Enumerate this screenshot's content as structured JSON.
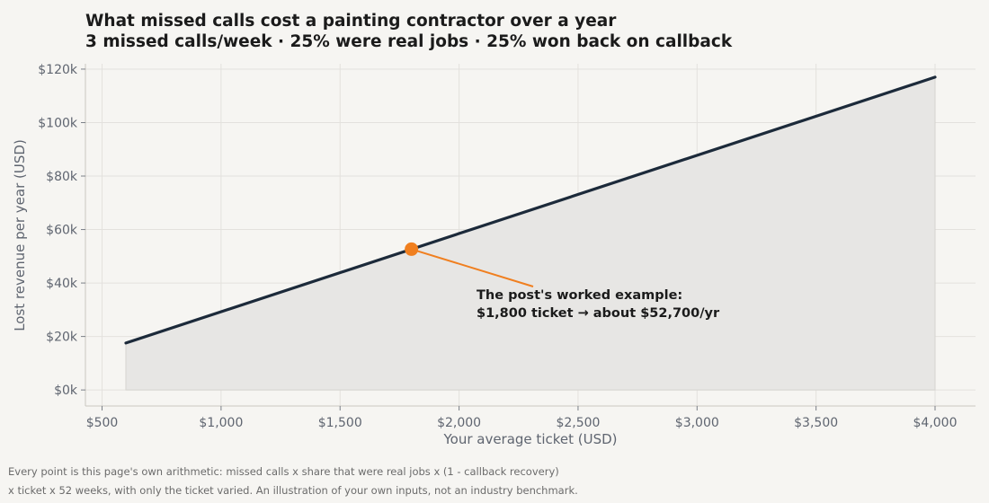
{
  "header": {
    "title": "What missed calls cost a painting contractor over a year",
    "subtitle": "3 missed calls/week · 25% were real jobs · 25% won back on callback"
  },
  "footnote": {
    "line1": "Every point is this page's own arithmetic: missed calls x share that were real jobs x (1 - callback recovery)",
    "line2": "x ticket x 52 weeks, with only the ticket varied. An illustration of your own inputs, not an industry benchmark."
  },
  "annotation": {
    "line1": "The post's worked example:",
    "line2": "$1,800 ticket → about $52,700/yr"
  },
  "colors": {
    "line": "#1c2a3a",
    "fill": "#e7e6e4",
    "highlight": "#f07f1f",
    "grid": "#e3e1dd",
    "axis_text": "#5f6570"
  },
  "chart_data": {
    "type": "area",
    "title": "What missed calls cost a painting contractor over a year",
    "subtitle": "3 missed calls/week · 25% were real jobs · 25% won back on callback",
    "xlabel": "Your average ticket (USD)",
    "ylabel": "Lost revenue per year (USD)",
    "xlim": [
      430,
      4170
    ],
    "ylim": [
      -6000,
      122000
    ],
    "x_ticks": [
      500,
      1000,
      1500,
      2000,
      2500,
      3000,
      3500,
      4000
    ],
    "x_tick_labels": [
      "$500",
      "$1,000",
      "$1,500",
      "$2,000",
      "$2,500",
      "$3,000",
      "$3,500",
      "$4,000"
    ],
    "y_ticks": [
      0,
      20000,
      40000,
      60000,
      80000,
      100000,
      120000
    ],
    "y_tick_labels": [
      "$0k",
      "$20k",
      "$40k",
      "$60k",
      "$80k",
      "$100k",
      "$120k"
    ],
    "grid": true,
    "series": [
      {
        "x": [
          600,
          4000
        ],
        "y": [
          17550,
          117000
        ]
      }
    ],
    "highlight_point": {
      "x": 1800,
      "y": 52650
    }
  }
}
